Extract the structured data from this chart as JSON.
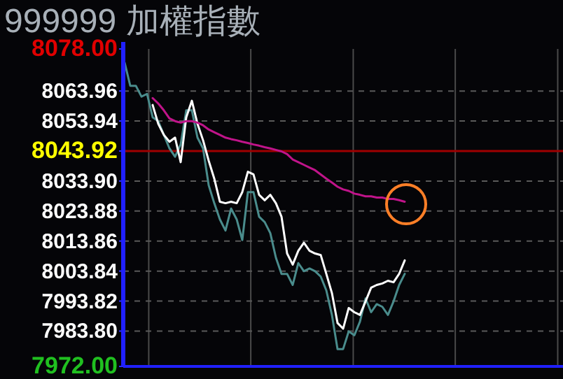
{
  "chart_data": {
    "type": "line",
    "title": "999999 加權指數",
    "categories": [
      null,
      null,
      null,
      null,
      null,
      null,
      null,
      null,
      null,
      null,
      null,
      null,
      null,
      null,
      null,
      null,
      null,
      null,
      null,
      null,
      null,
      null,
      null,
      null,
      null,
      null,
      null,
      null,
      null,
      null,
      null,
      null,
      null,
      null,
      null,
      null,
      null,
      null,
      null,
      null,
      null,
      null,
      null,
      null,
      null,
      null,
      null,
      null,
      null,
      null,
      null,
      null,
      null,
      null,
      null,
      null,
      null,
      null,
      null,
      null,
      null,
      null,
      null,
      null,
      null,
      null,
      null,
      null,
      null,
      null,
      null,
      null,
      null,
      null,
      null,
      null,
      null,
      null,
      null
    ],
    "series": [
      {
        "color": "#4a8c8c",
        "values": [
          8073.4,
          8065.7,
          8065.7,
          8062.1,
          8063.0,
          8055.2,
          8053.9,
          8049.3,
          8044.8,
          8042.0,
          8046.1,
          8057.5,
          8057.5,
          8048.4,
          8044.8,
          8032.5,
          8026.5,
          8021.1,
          8017.4,
          8024.7,
          8021.1,
          8014.2,
          8030.2,
          8030.2,
          8022.0,
          8020.2,
          8016.5,
          8008.3,
          8002.9,
          8002.9,
          7999.2,
          8006.5,
          8003.8,
          8004.7,
          8003.8,
          8002.0,
          7997.4,
          7989.2,
          7977.8,
          7977.8,
          7983.7,
          7982.4,
          7986.9,
          7994.7,
          7990.1,
          7992.8,
          7991.9,
          7989.2,
          7993.7,
          7999.2,
          8002.9,
          null,
          null,
          null,
          null,
          null,
          null,
          null,
          null,
          null,
          null,
          null,
          null,
          null,
          null,
          null,
          null,
          null,
          null,
          null,
          null,
          null,
          null,
          null,
          null,
          null,
          null,
          null,
          null
        ]
      },
      {
        "color": "#ffffff",
        "values": [
          null,
          null,
          null,
          null,
          null,
          8059.3,
          8053.0,
          8049.3,
          8047.0,
          8048.4,
          8040.2,
          8055.2,
          8060.7,
          8053.0,
          8047.5,
          8040.7,
          8034.7,
          8027.0,
          8026.5,
          8027.0,
          8026.5,
          8030.2,
          8037.0,
          8036.1,
          8029.3,
          8027.5,
          8029.3,
          8026.5,
          8022.0,
          8009.7,
          8006.0,
          8010.6,
          8013.3,
          8010.6,
          8009.7,
          8009.2,
          8002.9,
          7996.5,
          7986.5,
          7984.6,
          7991.5,
          7990.1,
          7989.2,
          7993.7,
          7998.3,
          7999.2,
          7999.7,
          8000.6,
          8000.1,
          8002.9,
          8007.4,
          null,
          null,
          null,
          null,
          null,
          null,
          null,
          null,
          null,
          null,
          null,
          null,
          null,
          null,
          null,
          null,
          null,
          null,
          null,
          null,
          null,
          null,
          null,
          null,
          null,
          null,
          null,
          null
        ]
      },
      {
        "color": "#c0148a",
        "values": [
          null,
          null,
          null,
          null,
          null,
          8061.6,
          8059.8,
          8057.5,
          8054.8,
          8053.9,
          8053.4,
          8053.9,
          8053.9,
          8053.4,
          8052.5,
          8051.1,
          8050.2,
          8049.3,
          8048.4,
          8047.9,
          8047.5,
          8047.0,
          8046.6,
          8046.1,
          8045.7,
          8045.2,
          8044.8,
          8044.3,
          8043.8,
          8042.9,
          8041.1,
          8040.2,
          8039.3,
          8038.4,
          8037.5,
          8036.1,
          8034.7,
          8033.4,
          8032.0,
          8031.1,
          8030.6,
          8029.7,
          8029.3,
          8028.8,
          8028.8,
          8028.4,
          8028.4,
          8027.9,
          8027.9,
          8027.5,
          8027.0,
          null,
          null,
          null,
          null,
          null,
          null,
          null,
          null,
          null,
          null,
          null,
          null,
          null,
          null,
          null,
          null,
          null,
          null,
          null,
          null,
          null,
          null,
          null,
          null,
          null,
          null,
          null,
          null
        ]
      }
    ],
    "ylim": [
      7972,
      8078
    ],
    "yticks": [
      {
        "value": 8078,
        "label": "8078.00"
      },
      8063.96,
      8053.94,
      8043.92,
      {
        "value": 8033.9,
        "label": "8033.90"
      },
      8023.88,
      8013.86,
      8003.84,
      7993.82,
      {
        "value": 7983.8,
        "label": "7983.80"
      },
      {
        "value": 7972,
        "label": "7972.00"
      }
    ],
    "ref_lines": [
      {
        "axis": "y",
        "value": 8043.92,
        "color": "#a00000"
      }
    ],
    "grid": true,
    "tick_labels": "y"
  }
}
